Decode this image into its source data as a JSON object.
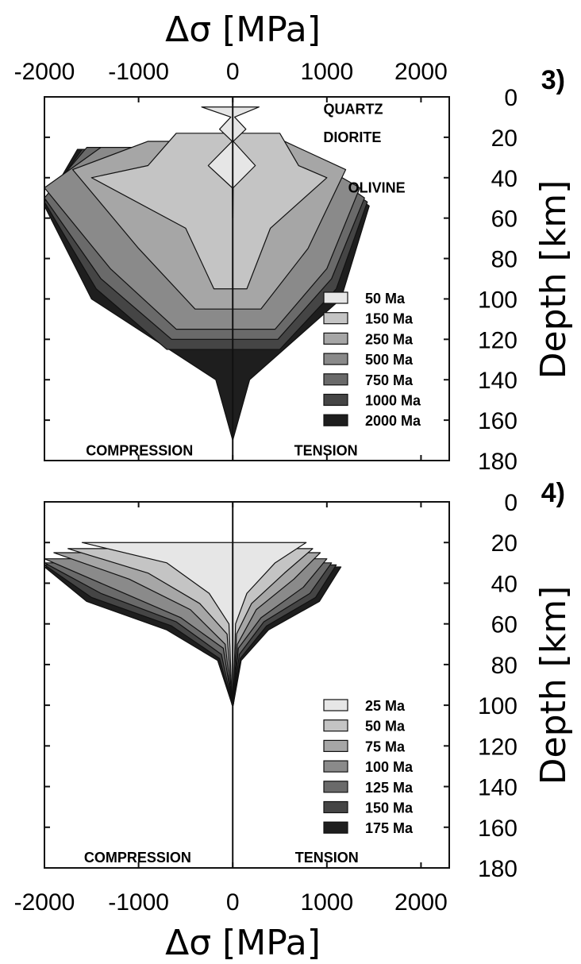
{
  "x_axis": {
    "top_label": "Δσ [MPa]",
    "bottom_label": "Δσ [MPa]",
    "ticks": [
      -2000,
      -1000,
      0,
      1000,
      2000
    ],
    "tick_labels": [
      "-2000",
      "-1000",
      "0",
      "1000",
      "2000"
    ]
  },
  "colors": {
    "ink": "#111111",
    "fills": [
      "#e6e6e6",
      "#c4c4c4",
      "#a6a6a6",
      "#8a8a8a",
      "#6a6a6a",
      "#454545",
      "#1e1e1e"
    ]
  },
  "chart_data": [
    {
      "type": "area",
      "panel_label": "3)",
      "ylabel": "Depth [km]",
      "y_ticks": [
        0,
        20,
        40,
        60,
        80,
        100,
        120,
        140,
        160,
        180
      ],
      "y_tick_labels": [
        "0",
        "20",
        "40",
        "60",
        "80",
        "100",
        "120",
        "140",
        "160",
        "180"
      ],
      "xlim": [
        -2000,
        2300
      ],
      "ylim": [
        0,
        180
      ],
      "y_inverted": true,
      "annotations": [
        {
          "text": "QUARTZ",
          "x": 1280,
          "y": 6
        },
        {
          "text": "DIORITE",
          "x": 1270,
          "y": 20
        },
        {
          "text": "OLIVINE",
          "x": 1530,
          "y": 45
        },
        {
          "text": "COMPRESSION",
          "x": -990,
          "y": 175
        },
        {
          "text": "TENSION",
          "x": 990,
          "y": 175
        }
      ],
      "legend_position": "lower-right",
      "legend": [
        "50 Ma",
        "150 Ma",
        "250 Ma",
        "500 Ma",
        "750 Ma",
        "1000 Ma",
        "2000 Ma"
      ],
      "series": [
        {
          "name": "50 Ma",
          "x_compression": [
            -330,
            -20,
            -140,
            -6,
            -260,
            -5,
            -2
          ],
          "x_tension": [
            280,
            20,
            140,
            6,
            240,
            5,
            2
          ],
          "y": [
            5,
            10,
            16,
            22,
            34,
            45,
            60
          ]
        },
        {
          "name": "150 Ma",
          "x_compression": [
            -600,
            -900,
            -1500,
            -500,
            -200
          ],
          "x_tension": [
            500,
            700,
            1000,
            400,
            150
          ],
          "y": [
            18,
            34,
            40,
            65,
            95
          ]
        },
        {
          "name": "250 Ma",
          "x_compression": [
            -900,
            -1700,
            -1000,
            -400
          ],
          "x_tension": [
            550,
            1200,
            800,
            300
          ],
          "y": [
            22,
            36,
            75,
            105
          ]
        },
        {
          "name": "500 Ma",
          "x_compression": [
            -1400,
            -2000,
            -1300,
            -600
          ],
          "x_tension": [
            600,
            1350,
            1000,
            450
          ],
          "y": [
            25,
            45,
            85,
            115
          ]
        },
        {
          "name": "750 Ma",
          "x_compression": [
            -1550,
            -2000,
            -1400,
            -650
          ],
          "x_tension": [
            620,
            1400,
            1050,
            480
          ],
          "y": [
            25,
            50,
            90,
            120
          ]
        },
        {
          "name": "1000 Ma",
          "x_compression": [
            -1600,
            -2000,
            -1450,
            -700
          ],
          "x_tension": [
            630,
            1430,
            1100,
            500
          ],
          "y": [
            26,
            52,
            95,
            125
          ]
        },
        {
          "name": "2000 Ma",
          "x_compression": [
            -1650,
            -2000,
            -1500,
            -180,
            0
          ],
          "x_tension": [
            640,
            1450,
            1150,
            180,
            0
          ],
          "y": [
            26,
            54,
            100,
            140,
            170
          ]
        }
      ]
    },
    {
      "type": "area",
      "panel_label": "4)",
      "ylabel": "Depth [km]",
      "y_ticks": [
        0,
        20,
        40,
        60,
        80,
        100,
        120,
        140,
        160,
        180
      ],
      "y_tick_labels": [
        "0",
        "20",
        "40",
        "60",
        "80",
        "100",
        "120",
        "140",
        "160",
        "180"
      ],
      "xlim": [
        -2000,
        2300
      ],
      "ylim": [
        0,
        180
      ],
      "y_inverted": true,
      "annotations": [
        {
          "text": "COMPRESSION",
          "x": -1010,
          "y": 175
        },
        {
          "text": "TENSION",
          "x": 1000,
          "y": 175
        }
      ],
      "legend_position": "lower-right",
      "legend": [
        "25 Ma",
        "50 Ma",
        "75 Ma",
        "100 Ma",
        "125 Ma",
        "150 Ma",
        "175 Ma"
      ],
      "series": [
        {
          "name": "25 Ma",
          "x_compression": [
            -1600,
            -700,
            -250,
            -40,
            -5
          ],
          "x_tension": [
            780,
            450,
            150,
            30,
            5
          ],
          "y": [
            20,
            30,
            45,
            60,
            100
          ]
        },
        {
          "name": "50 Ma",
          "x_compression": [
            -1750,
            -900,
            -350,
            -60,
            -5
          ],
          "x_tension": [
            850,
            550,
            200,
            40,
            5
          ],
          "y": [
            23,
            35,
            50,
            65,
            100
          ]
        },
        {
          "name": "75 Ma",
          "x_compression": [
            -1900,
            -1100,
            -450,
            -80,
            -5
          ],
          "x_tension": [
            930,
            650,
            250,
            50,
            5
          ],
          "y": [
            25,
            38,
            53,
            70,
            100
          ]
        },
        {
          "name": "100 Ma",
          "x_compression": [
            -2000,
            -1300,
            -550,
            -100,
            -5
          ],
          "x_tension": [
            1000,
            750,
            300,
            60,
            5
          ],
          "y": [
            28,
            42,
            57,
            72,
            100
          ]
        },
        {
          "name": "125 Ma",
          "x_compression": [
            -2000,
            -1400,
            -600,
            -120,
            -5
          ],
          "x_tension": [
            1050,
            820,
            330,
            70,
            5
          ],
          "y": [
            30,
            45,
            59,
            75,
            100
          ]
        },
        {
          "name": "150 Ma",
          "x_compression": [
            -2000,
            -1500,
            -650,
            -140,
            -5
          ],
          "x_tension": [
            1100,
            880,
            360,
            80,
            5
          ],
          "y": [
            31,
            47,
            61,
            77,
            100
          ]
        },
        {
          "name": "175 Ma",
          "x_compression": [
            -2000,
            -1550,
            -700,
            -160,
            -5
          ],
          "x_tension": [
            1150,
            920,
            380,
            90,
            5
          ],
          "y": [
            32,
            49,
            63,
            78,
            100
          ]
        }
      ]
    }
  ]
}
